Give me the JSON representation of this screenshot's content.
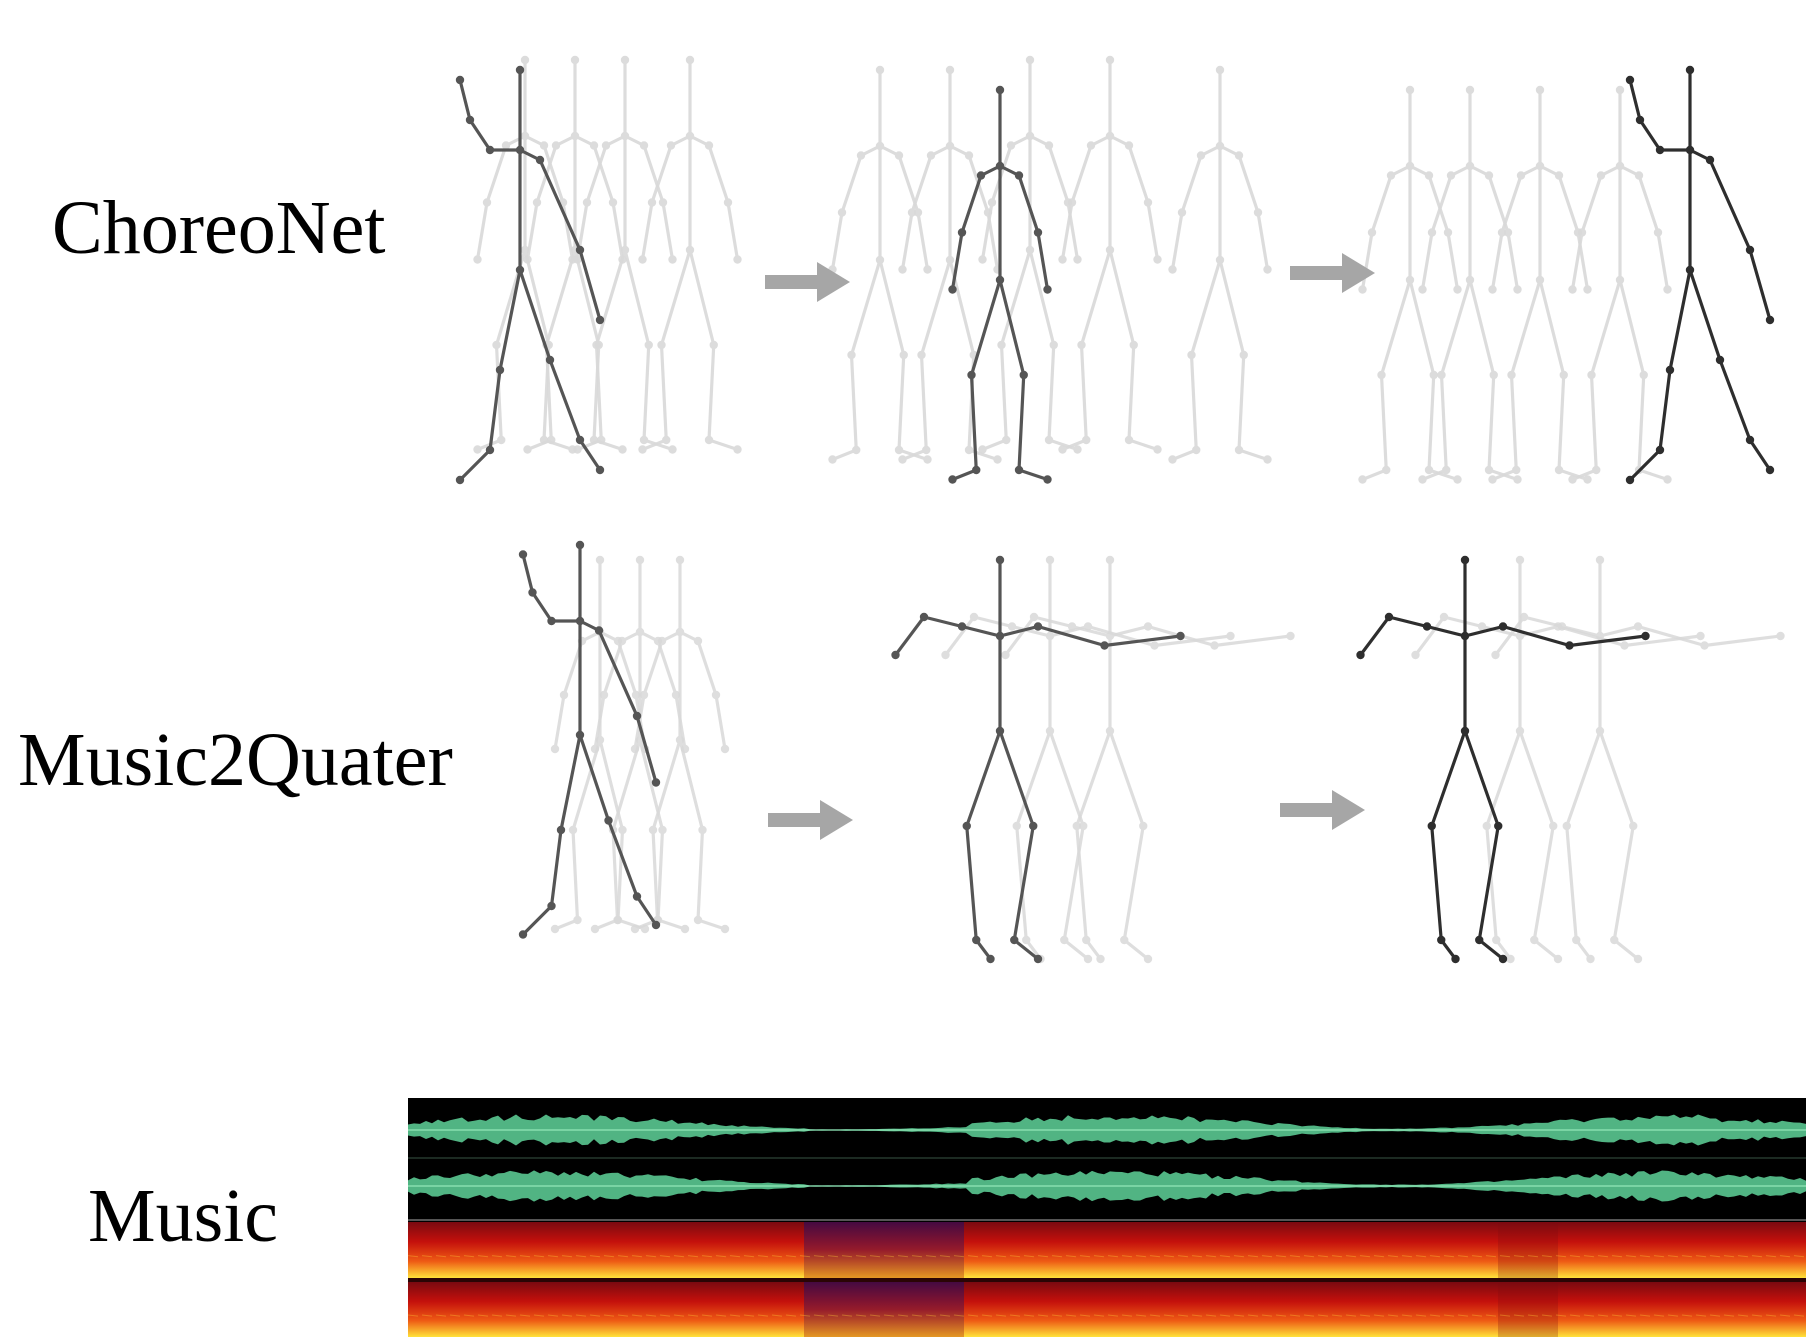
{
  "rows": {
    "choreonet": {
      "label": "ChoreoNet"
    },
    "music2quater": {
      "label": "Music2Quater"
    },
    "music": {
      "label": "Music"
    }
  },
  "colors": {
    "skeleton_dark": "#555555",
    "skeleton_darker": "#2e2e2e",
    "skeleton_ghost": "#d9d9d9",
    "arrow": "#a6a6a6",
    "waveform": "#5fd39a",
    "waveform_bg": "#000000",
    "spectrogram_low": "#c4100c",
    "spectrogram_high": "#ffe23a"
  },
  "icons": [
    "right-arrow-icon",
    "stick-figure-icon",
    "waveform-icon",
    "spectrogram-icon"
  ]
}
